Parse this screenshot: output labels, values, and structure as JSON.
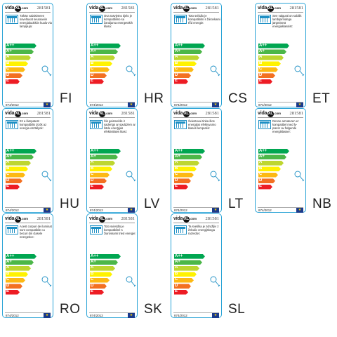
{
  "labels": [
    {
      "brand_left": "vida",
      "brand_mid": "XL",
      "brand_right": ".com",
      "code": "281581",
      "description": "Tähän valaisimeen soveltuvat seuraaviin energialuokkiin kuulu-via lamppuja:",
      "classes": [
        "A++",
        "A+",
        "A",
        "B",
        "C",
        "D",
        "E"
      ],
      "regulation": "874/2012",
      "lang": "FI"
    },
    {
      "brand_left": "vida",
      "brand_mid": "XL",
      "brand_right": ".com",
      "code": "281581",
      "description": "Ova rasvjetno tijelo je kompatibilno sa žaruljama energetskih klasa:",
      "classes": [
        "A++",
        "A+",
        "A",
        "B",
        "C",
        "D",
        "E"
      ],
      "regulation": "874/2012",
      "lang": "HR"
    },
    {
      "brand_left": "vida",
      "brand_mid": "XL",
      "brand_right": ".com",
      "code": "281581",
      "description": "Toto svítidlo je kompatibilní s žárovkami tříd energie:",
      "classes": [
        "A++",
        "A+",
        "A",
        "B",
        "C",
        "D",
        "E"
      ],
      "regulation": "874/2012",
      "lang": "CS"
    },
    {
      "brand_left": "vida",
      "brand_mid": "XL",
      "brand_right": ".com",
      "code": "281581",
      "description": "See valgusti on sobilik lambipirnidega järgmisest energiaklassist:",
      "classes": [
        "A++",
        "A+",
        "A",
        "B",
        "C",
        "D",
        "E"
      ],
      "regulation": "874/2012",
      "lang": "ET"
    },
    {
      "brand_left": "vida",
      "brand_mid": "XL",
      "brand_right": ".com",
      "code": "281581",
      "description": "Ez a lámpatest kompatibilis izzók az energia osztályok:",
      "classes": [
        "A++",
        "A+",
        "A",
        "B",
        "C",
        "D",
        "E"
      ],
      "regulation": "874/2012",
      "lang": "HU"
    },
    {
      "brand_left": "vida",
      "brand_mid": "XL",
      "brand_right": ".com",
      "code": "281581",
      "description": "Šis gaismeklis ir saderīgs ar spuldzēm ar šādu enerģijas efektivitātes klasi:",
      "classes": [
        "A++",
        "A+",
        "A",
        "B",
        "C",
        "D",
        "E"
      ],
      "regulation": "874/2012",
      "lang": "LV"
    },
    {
      "brand_left": "vida",
      "brand_mid": "XL",
      "brand_right": ".com",
      "code": "281581",
      "description": "Šviestuvui tinka šios energijos efektyvumo klasės lemputės:",
      "classes": [
        "A++",
        "A+",
        "A",
        "B",
        "C",
        "D",
        "E"
      ],
      "regulation": "874/2012",
      "lang": "LT"
    },
    {
      "brand_left": "vida",
      "brand_mid": "XL",
      "brand_right": ".com",
      "code": "281581",
      "description": "Denne armaturen er kompatibel med ly-pærer av følgende energiklasser:",
      "classes": [
        "A++",
        "A+",
        "A",
        "B",
        "C",
        "D",
        "E"
      ],
      "regulation": "874/2012",
      "lang": "NB"
    },
    {
      "brand_left": "vida",
      "brand_mid": "XL",
      "brand_right": ".com",
      "code": "281581",
      "description": "Acest corpuri de iluminat sunt compatibile cu becuri din clasele energetice:",
      "classes": [
        "A++",
        "A+",
        "A",
        "B",
        "C",
        "D",
        "E"
      ],
      "regulation": "874/2012",
      "lang": "RO"
    },
    {
      "brand_left": "vida",
      "brand_mid": "XL",
      "brand_right": ".com",
      "code": "281581",
      "description": "Toto svietidlo je kompatibilné s žiarovkami tried energie:",
      "classes": [
        "A++",
        "A+",
        "A",
        "B",
        "C",
        "D",
        "E"
      ],
      "regulation": "874/2012",
      "lang": "SK"
    },
    {
      "brand_left": "vida",
      "brand_mid": "XL",
      "brand_right": ".com",
      "code": "281581",
      "description": "Ta svetilka je združljiv z žebulic energijskega razredov:",
      "classes": [
        "A++",
        "A+",
        "A",
        "B",
        "C",
        "D",
        "E"
      ],
      "regulation": "874/2012",
      "lang": "SL"
    }
  ],
  "class_colors": [
    "#00a651",
    "#4cb748",
    "#bed630",
    "#fff200",
    "#fdb913",
    "#f37021",
    "#ed1c24"
  ],
  "accent": "#29a3d6",
  "icons": {
    "lamp": "fixture-icon",
    "bulb": "bulb-icon",
    "eu": "eu-flag-icon"
  }
}
